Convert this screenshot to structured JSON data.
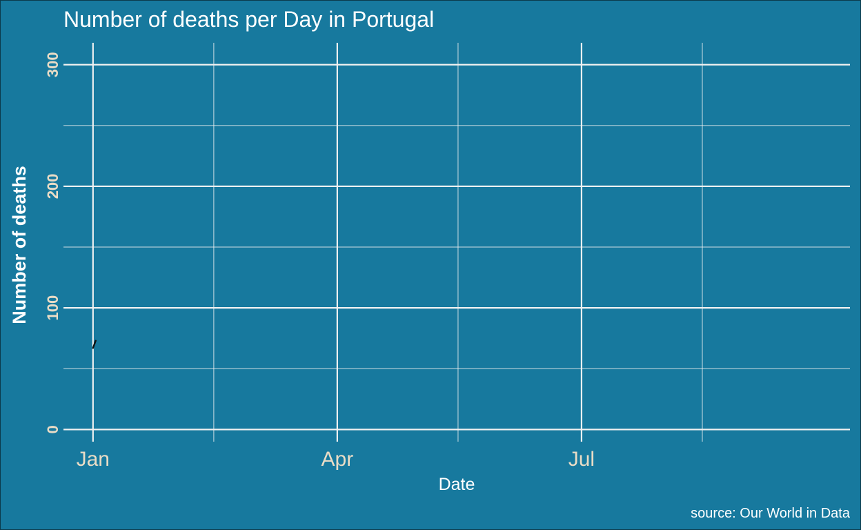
{
  "colors": {
    "background": "#17799e",
    "border": "#0b3a4a",
    "grid": "#f1f1f1",
    "title_text": "#ffffff",
    "axis_text": "#e9dcc6",
    "axis_title": "#ffffff",
    "series_line": "#111111"
  },
  "chart_data": {
    "type": "line",
    "title": "Number of deaths per Day in Portugal",
    "xlabel": "Date",
    "ylabel": "Number of deaths",
    "caption": "source: Our World in Data",
    "xlim": [
      "2019-12-21",
      "2020-10-09"
    ],
    "ylim": [
      -10,
      318
    ],
    "x_major_ticks": [
      {
        "date": "2020-01-01",
        "label": "Jan"
      },
      {
        "date": "2020-04-01",
        "label": "Apr"
      },
      {
        "date": "2020-07-01",
        "label": "Jul"
      }
    ],
    "x_minor_ticks": [
      "2020-02-15",
      "2020-05-16",
      "2020-08-15"
    ],
    "y_major_ticks": [
      0,
      100,
      200,
      300
    ],
    "y_minor_ticks": [
      50,
      150,
      250
    ],
    "grid": true,
    "series": [
      {
        "x": [
          "2020-01-01",
          "2020-01-02"
        ],
        "y": [
          67,
          73
        ]
      }
    ]
  }
}
